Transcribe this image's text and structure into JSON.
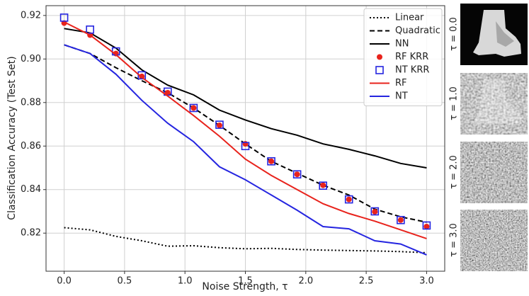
{
  "chart_data": {
    "type": "line",
    "xlabel": "Noise Strength, τ",
    "ylabel": "Classification Accuracy (Test Set)",
    "x": [
      0,
      0.2143,
      0.4286,
      0.6429,
      0.8571,
      1.0714,
      1.2857,
      1.5,
      1.7143,
      1.9286,
      2.1429,
      2.3571,
      2.5714,
      2.7857,
      3.0
    ],
    "xlim": [
      -0.15,
      3.15
    ],
    "ylim": [
      0.8025,
      0.9245
    ],
    "xticks": [
      {
        "value": 0,
        "label": "0.0"
      },
      0.5,
      {
        "value": 1,
        "label": "1.0"
      },
      1.5,
      {
        "value": 2,
        "label": "2.0"
      },
      2.5,
      {
        "value": 3,
        "label": "3.0"
      }
    ],
    "yticks": [
      0.82,
      0.84,
      0.86,
      0.88,
      {
        "value": 0.9,
        "label": "0.90"
      },
      0.92
    ],
    "grid": true,
    "legend": "upper right",
    "series": [
      {
        "name": "Linear",
        "color": "#000000",
        "style": "dotted",
        "values": [
          0.8225,
          0.8215,
          0.8185,
          0.8165,
          0.814,
          0.8142,
          0.8133,
          0.8128,
          0.813,
          0.8125,
          0.8122,
          0.812,
          0.8118,
          0.8115,
          0.811
        ]
      },
      {
        "name": "Quadratic",
        "color": "#000000",
        "style": "dashed",
        "values": [
          0.9065,
          0.9025,
          0.896,
          0.89,
          0.8845,
          0.8775,
          0.8695,
          0.861,
          0.853,
          0.8475,
          0.842,
          0.8375,
          0.831,
          0.8275,
          0.825
        ]
      },
      {
        "name": "NN",
        "color": "#000000",
        "style": "solid",
        "values": [
          0.914,
          0.912,
          0.905,
          0.895,
          0.888,
          0.8835,
          0.8765,
          0.872,
          0.868,
          0.865,
          0.861,
          0.8585,
          0.8555,
          0.852,
          0.85
        ]
      },
      {
        "name": "RF KRR",
        "color": "#e8231c",
        "marker": "circle",
        "values": [
          0.9165,
          0.911,
          0.9025,
          0.892,
          0.8845,
          0.8775,
          0.8695,
          0.861,
          0.853,
          0.847,
          0.842,
          0.8355,
          0.8298,
          0.826,
          0.823
        ]
      },
      {
        "name": "NT KRR",
        "color": "#2525e0",
        "marker": "square",
        "values": [
          0.919,
          0.9135,
          0.9035,
          0.8925,
          0.885,
          0.8775,
          0.8698,
          0.86,
          0.853,
          0.847,
          0.8418,
          0.8355,
          0.83,
          0.826,
          0.8235
        ]
      },
      {
        "name": "RF",
        "color": "#e8231c",
        "style": "solid",
        "values": [
          0.917,
          0.911,
          0.902,
          0.8915,
          0.883,
          0.874,
          0.8645,
          0.854,
          0.8465,
          0.84,
          0.8335,
          0.829,
          0.8255,
          0.8215,
          0.8175
        ]
      },
      {
        "name": "NT",
        "color": "#2525e0",
        "style": "solid",
        "values": [
          0.9065,
          0.9025,
          0.893,
          0.881,
          0.8705,
          0.862,
          0.8505,
          0.8445,
          0.8375,
          0.8305,
          0.823,
          0.822,
          0.8165,
          0.815,
          0.81
        ]
      }
    ]
  },
  "side_panels": {
    "labels": [
      "τ = 0.0",
      "τ = 1.0",
      "τ = 2.0",
      "τ = 3.0"
    ]
  }
}
